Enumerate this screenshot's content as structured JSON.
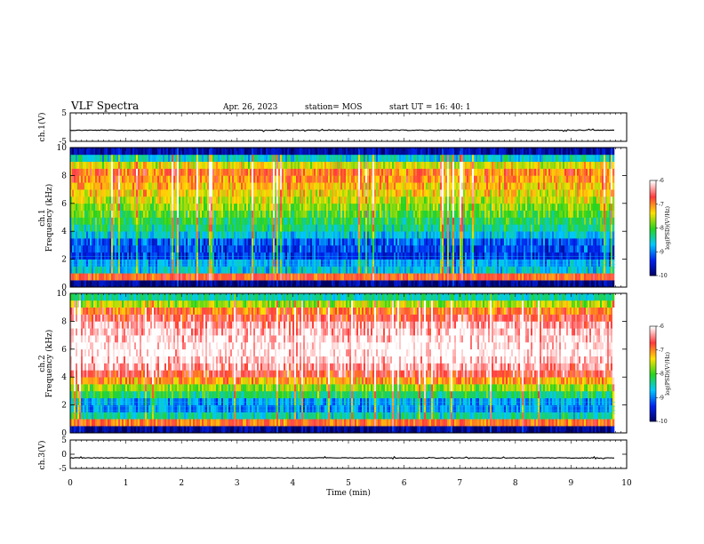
{
  "header": {
    "title": "VLF Spectra",
    "date": "Apr. 26, 2023",
    "station": "station= MOS",
    "start": "start  UT =   16: 40: 1"
  },
  "colors": {
    "colormap": [
      "#ffffff",
      "#ff3b3b",
      "#ffe000",
      "#28d41e",
      "#00c8ff",
      "#0022ee",
      "#000060"
    ],
    "trace": "#000000",
    "axes": "#000000"
  },
  "chart_data": [
    {
      "type": "line",
      "panel": "ch1-waveform",
      "ylabel": "ch.1(V)",
      "ylim": [
        -5,
        5
      ],
      "yticks": [
        5,
        -5
      ],
      "xlim": [
        0,
        10
      ],
      "x": [
        0,
        2,
        4,
        6,
        8,
        9.8
      ],
      "y": [
        -1.1,
        -1.1,
        -1.1,
        -1.1,
        -1.1,
        -1.1
      ]
    },
    {
      "type": "heatmap",
      "panel": "ch1-spectrogram",
      "ylabel": "ch.1 Frequency (kHz)",
      "ylim": [
        0,
        10
      ],
      "yticks": [
        0,
        2,
        4,
        6,
        8,
        10
      ],
      "xlim": [
        0,
        9.8
      ],
      "colorbar": {
        "label": "log(PSD)(V²/Hz)",
        "range": [
          -10,
          -6
        ],
        "ticks": [
          "-6",
          "-7",
          "-8",
          "-9",
          "-10"
        ]
      },
      "freq_kHz": [
        0.25,
        0.75,
        1.25,
        1.75,
        2.25,
        2.75,
        3.25,
        3.75,
        4.25,
        4.75,
        5.25,
        5.75,
        6.25,
        6.75,
        7.25,
        7.75,
        8.25,
        8.75,
        9.25,
        9.75
      ],
      "mean_log_psd": [
        -9.8,
        -6.8,
        -8.6,
        -8.8,
        -9.3,
        -9.2,
        -9.1,
        -8.6,
        -8.3,
        -8.1,
        -7.9,
        -7.7,
        -7.5,
        -7.3,
        -7.2,
        -7.0,
        -6.9,
        -7.4,
        -8.5,
        -9.7
      ]
    },
    {
      "type": "heatmap",
      "panel": "ch2-spectrogram",
      "ylabel": "ch.2 Frequency (kHz)",
      "ylim": [
        0,
        10
      ],
      "yticks": [
        0,
        2,
        4,
        6,
        8,
        10
      ],
      "xlim": [
        0,
        9.8
      ],
      "colorbar": {
        "label": "log(PSD)(V²/Hz)",
        "range": [
          -10,
          -6
        ],
        "ticks": [
          "-6",
          "-7",
          "-8",
          "-9",
          "-10"
        ]
      },
      "freq_kHz": [
        0.25,
        0.75,
        1.25,
        1.75,
        2.25,
        2.75,
        3.25,
        3.75,
        4.25,
        4.75,
        5.25,
        5.75,
        6.25,
        6.75,
        7.25,
        7.75,
        8.25,
        8.75,
        9.25,
        9.75
      ],
      "mean_log_psd": [
        -9.8,
        -6.9,
        -8.4,
        -8.9,
        -8.8,
        -8.2,
        -7.7,
        -7.1,
        -6.6,
        -6.3,
        -6.1,
        -6.0,
        -6.0,
        -6.1,
        -6.2,
        -6.3,
        -6.6,
        -6.9,
        -7.6,
        -8.4
      ]
    },
    {
      "type": "line",
      "panel": "ch3-waveform",
      "ylabel": "ch.3(V)",
      "ylim": [
        -5,
        5
      ],
      "yticks": [
        5,
        0,
        -5
      ],
      "xlim": [
        0,
        10
      ],
      "xlabel": "Time  (min)",
      "xticks": [
        "0",
        "1",
        "2",
        "3",
        "4",
        "5",
        "6",
        "7",
        "8",
        "9",
        "10"
      ],
      "x": [
        0,
        2,
        4,
        6,
        8,
        9.8
      ],
      "y": [
        -1.3,
        -1.3,
        -1.3,
        -1.3,
        -1.3,
        -1.3
      ]
    }
  ]
}
